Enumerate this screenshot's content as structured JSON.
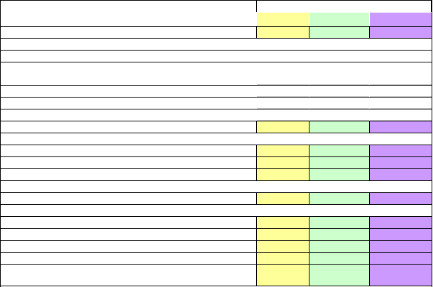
{
  "palette": {
    "col_a": "#ffff99",
    "col_b": "#ccffcc",
    "col_c": "#cc99ff",
    "grid": "#000000",
    "white": "#ffffff"
  },
  "header": {
    "title_cell": "",
    "group_header": "",
    "col_a_header": "",
    "col_b_header": "",
    "col_c_header": ""
  },
  "rows": [
    {
      "label": "",
      "kind": "colored"
    },
    {
      "label": "",
      "kind": "section"
    },
    {
      "label": "",
      "kind": "section"
    },
    {
      "label": "",
      "kind": "blank-tall"
    },
    {
      "label": "",
      "kind": "blank"
    },
    {
      "label": "",
      "kind": "blank"
    },
    {
      "label": "",
      "kind": "blank"
    },
    {
      "label": "",
      "kind": "colored"
    },
    {
      "label": "",
      "kind": "section"
    },
    {
      "label": "",
      "kind": "colored"
    },
    {
      "label": "",
      "kind": "colored"
    },
    {
      "label": "",
      "kind": "colored"
    },
    {
      "label": "",
      "kind": "section"
    },
    {
      "label": "",
      "kind": "colored"
    },
    {
      "label": "",
      "kind": "section"
    },
    {
      "label": "",
      "kind": "colored"
    },
    {
      "label": "",
      "kind": "colored"
    },
    {
      "label": "",
      "kind": "colored"
    },
    {
      "label": "",
      "kind": "colored"
    },
    {
      "label": "",
      "kind": "colored-tall"
    }
  ]
}
